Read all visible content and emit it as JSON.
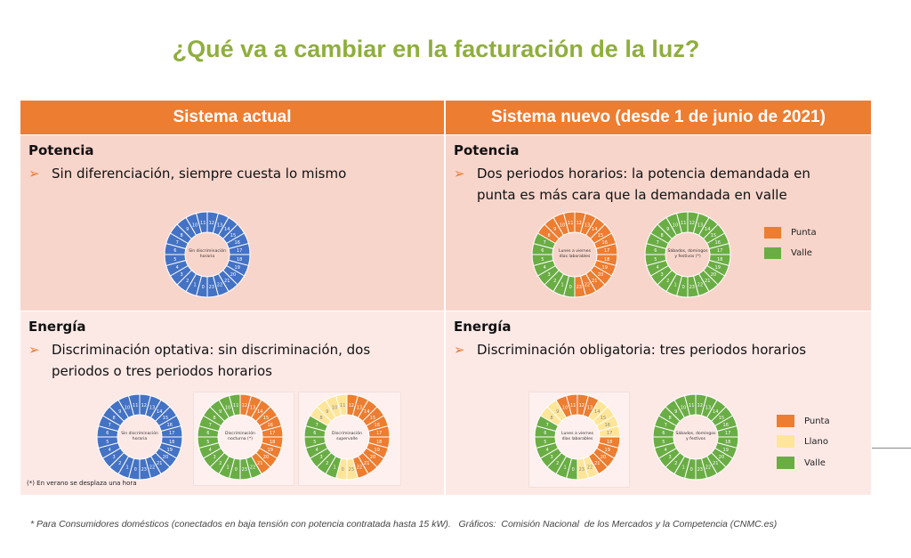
{
  "title": "¿Qué va a cambiar en la facturación de la luz?",
  "colors": {
    "punta": "#ed7d31",
    "llano": "#fee599",
    "valle": "#6aad45",
    "sin": "#4472c4",
    "accent": "#ed7d31",
    "title": "#8fae3e"
  },
  "columns": [
    "Sistema actual",
    "Sistema nuevo (desde 1 de junio de 2021)"
  ],
  "current": {
    "potencia": {
      "heading": "Potencia",
      "bullets": [
        "Sin diferenciación, siempre cuesta lo mismo"
      ]
    },
    "energia": {
      "heading": "Energía",
      "bullets": [
        "Discriminación optativa: sin discriminación, dos periodos o tres periodos horarios"
      ],
      "note": "(*) En verano se desplaza una hora"
    }
  },
  "new": {
    "potencia": {
      "heading": "Potencia",
      "bullets": [
        "Dos periodos horarios: la potencia demandada en punta es más cara que la demandada en valle"
      ],
      "legend": [
        "Punta",
        "Valle"
      ]
    },
    "energia": {
      "heading": "Energía",
      "bullets": [
        "Discriminación obligatoria: tres periodos horarios"
      ],
      "legend": [
        "Punta",
        "Llano",
        "Valle"
      ]
    }
  },
  "chart_data": [
    {
      "type": "clock",
      "label": "Sin discriminación horaria",
      "hours": [
        "sin",
        "sin",
        "sin",
        "sin",
        "sin",
        "sin",
        "sin",
        "sin",
        "sin",
        "sin",
        "sin",
        "sin",
        "sin",
        "sin",
        "sin",
        "sin",
        "sin",
        "sin",
        "sin",
        "sin",
        "sin",
        "sin",
        "sin",
        "sin"
      ]
    },
    {
      "type": "clock",
      "label": "Lunes a viernes días laborables",
      "hours": [
        "valle",
        "valle",
        "valle",
        "valle",
        "valle",
        "valle",
        "valle",
        "valle",
        "punta",
        "punta",
        "punta",
        "punta",
        "punta",
        "punta",
        "punta",
        "punta",
        "punta",
        "punta",
        "punta",
        "punta",
        "punta",
        "punta",
        "punta",
        "punta"
      ]
    },
    {
      "type": "clock",
      "label": "Sábados, domingos y festivos (*)",
      "hours": [
        "valle",
        "valle",
        "valle",
        "valle",
        "valle",
        "valle",
        "valle",
        "valle",
        "valle",
        "valle",
        "valle",
        "valle",
        "valle",
        "valle",
        "valle",
        "valle",
        "valle",
        "valle",
        "valle",
        "valle",
        "valle",
        "valle",
        "valle",
        "valle"
      ]
    },
    {
      "type": "clock",
      "label": "Sin discriminación horaria",
      "hours": [
        "sin",
        "sin",
        "sin",
        "sin",
        "sin",
        "sin",
        "sin",
        "sin",
        "sin",
        "sin",
        "sin",
        "sin",
        "sin",
        "sin",
        "sin",
        "sin",
        "sin",
        "sin",
        "sin",
        "sin",
        "sin",
        "sin",
        "sin",
        "sin"
      ]
    },
    {
      "type": "clock",
      "label": "Discriminación nocturna (*)",
      "hours": [
        "valle",
        "valle",
        "valle",
        "valle",
        "valle",
        "valle",
        "valle",
        "valle",
        "valle",
        "valle",
        "valle",
        "valle",
        "punta",
        "punta",
        "punta",
        "punta",
        "punta",
        "punta",
        "punta",
        "punta",
        "punta",
        "punta",
        "valle",
        "valle"
      ]
    },
    {
      "type": "clock",
      "label": "Discriminación supervalle",
      "hours": [
        "llano",
        "valle",
        "valle",
        "valle",
        "valle",
        "valle",
        "valle",
        "valle",
        "llano",
        "llano",
        "llano",
        "llano",
        "punta",
        "punta",
        "punta",
        "punta",
        "punta",
        "punta",
        "punta",
        "punta",
        "punta",
        "punta",
        "punta",
        "llano"
      ]
    },
    {
      "type": "clock",
      "label": "Lunes a viernes días laborables",
      "hours": [
        "valle",
        "valle",
        "valle",
        "valle",
        "valle",
        "valle",
        "valle",
        "valle",
        "llano",
        "llano",
        "punta",
        "punta",
        "punta",
        "punta",
        "llano",
        "llano",
        "llano",
        "llano",
        "punta",
        "punta",
        "punta",
        "punta",
        "llano",
        "llano"
      ]
    },
    {
      "type": "clock",
      "label": "Sábados, domingos y festivos",
      "hours": [
        "valle",
        "valle",
        "valle",
        "valle",
        "valle",
        "valle",
        "valle",
        "valle",
        "valle",
        "valle",
        "valle",
        "valle",
        "valle",
        "valle",
        "valle",
        "valle",
        "valle",
        "valle",
        "valle",
        "valle",
        "valle",
        "valle",
        "valle",
        "valle"
      ]
    }
  ],
  "footnote": "* Para Consumidores domésticos (conectados en baja tensión con potencia contratada hasta 15 kW).   Gráficos:  Comisión Nacional  de los Mercados y la Competencia (CNMC.es)"
}
